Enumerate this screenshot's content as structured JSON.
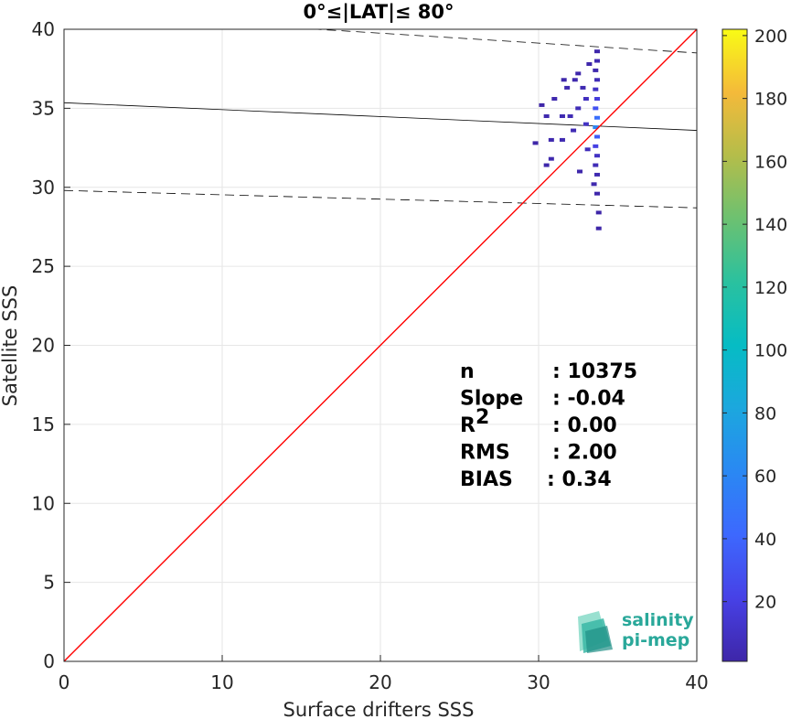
{
  "chart_data": {
    "type": "heatmap",
    "title": "0°≤|LAT|≤ 80°",
    "xlabel": "Surface drifters SSS",
    "ylabel": "Satellite SSS",
    "xlim": [
      0,
      40
    ],
    "ylim": [
      0,
      40
    ],
    "xticks": [
      "0",
      "10",
      "20",
      "30",
      "40"
    ],
    "yticks": [
      "0",
      "5",
      "10",
      "15",
      "20",
      "25",
      "30",
      "35",
      "40"
    ],
    "grid": true,
    "colorbar": {
      "ticks": [
        "20",
        "40",
        "60",
        "80",
        "100",
        "120",
        "140",
        "160",
        "180",
        "200"
      ],
      "range": [
        1,
        202
      ],
      "colormap": "parula"
    },
    "lines": {
      "identity": {
        "x": [
          0,
          40
        ],
        "y": [
          0,
          40
        ],
        "color": "#ff0000"
      },
      "fit": {
        "x": [
          0,
          40
        ],
        "y": [
          35.35,
          33.6
        ],
        "color": "#000000"
      },
      "upper_bound": {
        "x": [
          0,
          40
        ],
        "y": [
          41.0,
          38.5
        ],
        "color": "#000000",
        "style": "dashed"
      },
      "lower_bound": {
        "x": [
          0,
          40
        ],
        "y": [
          29.8,
          28.7
        ],
        "color": "#000000",
        "style": "dashed"
      }
    },
    "density_cells": [
      {
        "x": 33.7,
        "y": 38.6,
        "count": 2
      },
      {
        "x": 33.7,
        "y": 38.0,
        "count": 4
      },
      {
        "x": 33.6,
        "y": 37.4,
        "count": 3
      },
      {
        "x": 33.7,
        "y": 36.8,
        "count": 6
      },
      {
        "x": 33.6,
        "y": 36.2,
        "count": 10
      },
      {
        "x": 33.7,
        "y": 35.6,
        "count": 18
      },
      {
        "x": 33.6,
        "y": 35.0,
        "count": 30
      },
      {
        "x": 33.7,
        "y": 34.4,
        "count": 45
      },
      {
        "x": 33.6,
        "y": 33.8,
        "count": 60
      },
      {
        "x": 33.7,
        "y": 33.2,
        "count": 35
      },
      {
        "x": 33.6,
        "y": 32.6,
        "count": 20
      },
      {
        "x": 33.7,
        "y": 32.0,
        "count": 10
      },
      {
        "x": 33.6,
        "y": 31.4,
        "count": 6
      },
      {
        "x": 33.7,
        "y": 30.8,
        "count": 4
      },
      {
        "x": 33.5,
        "y": 30.2,
        "count": 3
      },
      {
        "x": 33.7,
        "y": 29.6,
        "count": 2
      },
      {
        "x": 33.8,
        "y": 28.4,
        "count": 1
      },
      {
        "x": 33.8,
        "y": 27.4,
        "count": 1
      },
      {
        "x": 33.0,
        "y": 35.6,
        "count": 8
      },
      {
        "x": 32.5,
        "y": 35.0,
        "count": 6
      },
      {
        "x": 32.0,
        "y": 34.5,
        "count": 5
      },
      {
        "x": 31.5,
        "y": 34.5,
        "count": 4
      },
      {
        "x": 30.5,
        "y": 34.5,
        "count": 3
      },
      {
        "x": 32.8,
        "y": 36.3,
        "count": 4
      },
      {
        "x": 31.8,
        "y": 36.3,
        "count": 3
      },
      {
        "x": 32.3,
        "y": 36.8,
        "count": 3
      },
      {
        "x": 31.0,
        "y": 35.6,
        "count": 3
      },
      {
        "x": 33.0,
        "y": 34.0,
        "count": 10
      },
      {
        "x": 32.2,
        "y": 33.6,
        "count": 5
      },
      {
        "x": 31.5,
        "y": 33.0,
        "count": 4
      },
      {
        "x": 30.8,
        "y": 33.0,
        "count": 3
      },
      {
        "x": 33.1,
        "y": 32.4,
        "count": 7
      },
      {
        "x": 30.8,
        "y": 31.8,
        "count": 3
      },
      {
        "x": 30.5,
        "y": 31.4,
        "count": 2
      },
      {
        "x": 29.8,
        "y": 32.8,
        "count": 1
      },
      {
        "x": 30.2,
        "y": 35.2,
        "count": 1
      },
      {
        "x": 32.5,
        "y": 37.2,
        "count": 2
      },
      {
        "x": 31.6,
        "y": 36.8,
        "count": 2
      },
      {
        "x": 33.2,
        "y": 37.8,
        "count": 2
      },
      {
        "x": 32.6,
        "y": 31.0,
        "count": 2
      }
    ]
  },
  "stats": {
    "rows": [
      {
        "label": "n",
        "value": ": 10375"
      },
      {
        "label": "Slope",
        "value": ": -0.04"
      },
      {
        "label": "R",
        "sup": "2",
        "value": ": 0.00"
      },
      {
        "label": "RMS",
        "value": ": 2.00"
      },
      {
        "label": "BIAS",
        "value": ": 0.34"
      }
    ]
  },
  "logo": {
    "line1": "salinity",
    "line2": "pi-mep"
  }
}
